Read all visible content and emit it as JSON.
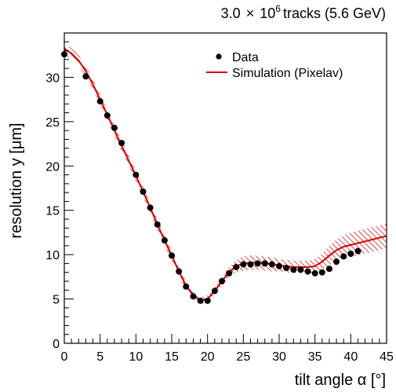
{
  "header": {
    "prefix": "3.0",
    "times": "×",
    "base": "10",
    "exponent": "6",
    "suffix": "tracks (5.6 GeV)"
  },
  "chart_data": {
    "type": "scatter",
    "xlabel": "tilt angle α [°]",
    "ylabel": "resolution y [μm]",
    "xlim": [
      0,
      45
    ],
    "ylim": [
      0,
      35
    ],
    "x_ticks": [
      0,
      5,
      10,
      15,
      20,
      25,
      30,
      35,
      40,
      45
    ],
    "y_ticks": [
      0,
      5,
      10,
      15,
      20,
      25,
      30
    ],
    "legend_position": "top-right",
    "colors": {
      "data": "#000000",
      "simulation": "#d10000"
    },
    "series": [
      {
        "name": "Data",
        "kind": "points",
        "x": [
          0,
          3,
          5,
          6,
          7,
          8,
          10,
          11,
          12,
          13,
          14,
          15,
          16,
          17,
          18,
          19,
          20,
          21,
          22,
          23,
          24,
          25,
          26,
          27,
          28,
          29,
          30,
          31,
          32,
          33,
          34,
          35,
          36,
          37,
          38,
          39,
          40,
          41
        ],
        "y": [
          32.6,
          30.1,
          27.3,
          25.7,
          24.3,
          22.6,
          19.0,
          17.1,
          15.3,
          13.4,
          11.6,
          9.9,
          8.1,
          6.4,
          5.3,
          4.8,
          4.8,
          5.9,
          7.0,
          7.9,
          8.6,
          8.9,
          8.9,
          9.0,
          9.0,
          8.9,
          8.7,
          8.5,
          8.3,
          8.3,
          8.1,
          7.9,
          8.0,
          8.4,
          9.2,
          9.8,
          10.1,
          10.4
        ]
      },
      {
        "name": "Simulation (Pixelav)",
        "kind": "band",
        "x": [
          0,
          1,
          2,
          3,
          4,
          5,
          6,
          7,
          8,
          9,
          10,
          11,
          12,
          13,
          14,
          15,
          16,
          17,
          18,
          19,
          20,
          21,
          22,
          23,
          24,
          25,
          26,
          27,
          28,
          29,
          30,
          31,
          32,
          33,
          34,
          35,
          36,
          37,
          38,
          39,
          40,
          41,
          42,
          43,
          44,
          45
        ],
        "y": [
          33.2,
          32.7,
          31.9,
          30.7,
          29.2,
          27.5,
          25.8,
          24.0,
          22.3,
          20.6,
          18.9,
          17.1,
          15.3,
          13.4,
          11.6,
          9.9,
          8.1,
          6.5,
          5.4,
          4.8,
          5.0,
          5.9,
          7.0,
          8.0,
          8.7,
          9.0,
          9.1,
          9.1,
          9.0,
          8.9,
          8.8,
          8.7,
          8.6,
          8.6,
          8.6,
          8.7,
          9.2,
          9.9,
          10.5,
          10.9,
          11.1,
          11.3,
          11.5,
          11.7,
          11.9,
          12.1
        ],
        "uncertainty": [
          0.6,
          0.6,
          0.6,
          0.6,
          0.6,
          0.6,
          0.6,
          0.6,
          0.6,
          0.6,
          0.6,
          0.6,
          0.6,
          0.6,
          0.6,
          0.6,
          0.5,
          0.5,
          0.4,
          0.4,
          0.4,
          0.4,
          0.5,
          0.6,
          0.7,
          0.8,
          0.8,
          0.8,
          0.8,
          0.8,
          0.7,
          0.7,
          0.7,
          0.7,
          0.7,
          0.8,
          0.9,
          1.1,
          1.2,
          1.3,
          1.4,
          1.4,
          1.4,
          1.4,
          1.4,
          1.4
        ]
      }
    ]
  }
}
